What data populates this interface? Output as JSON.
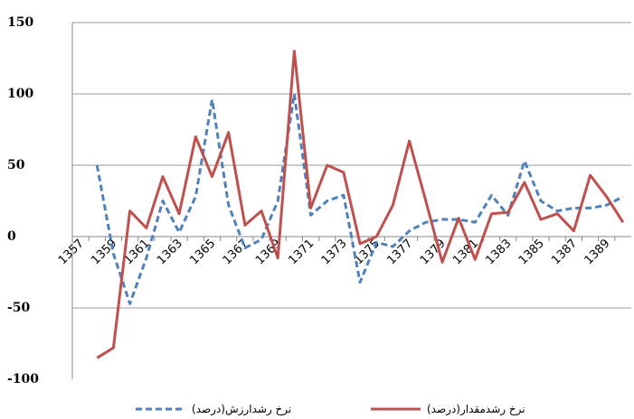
{
  "chart_data": {
    "type": "line",
    "categories": [
      "1357",
      null,
      "1359",
      null,
      "1361",
      null,
      "1363",
      null,
      "1365",
      null,
      "1367",
      null,
      "1369",
      null,
      "1371",
      null,
      "1373",
      null,
      "1375",
      null,
      "1377",
      null,
      "1379",
      null,
      "1381",
      null,
      "1383",
      null,
      "1385",
      null,
      "1387",
      null,
      "1389",
      null
    ],
    "series": [
      {
        "name": "نرخ رشدارزش(درصد)",
        "color": "#4f81bd",
        "dashed": true,
        "values": [
          null,
          50,
          -12,
          -47,
          -15,
          25,
          3,
          28,
          96,
          22,
          -8,
          -2,
          25,
          100,
          15,
          25,
          29,
          -32,
          -4,
          -7,
          4,
          10,
          12,
          12,
          10,
          29,
          15,
          53,
          25,
          18,
          20,
          20,
          22,
          28
        ]
      },
      {
        "name": "نرخ رشدمقدار(درصد)",
        "color": "#c0504d",
        "dashed": false,
        "values": [
          null,
          -85,
          -78,
          18,
          6,
          42,
          16,
          70,
          42,
          73,
          8,
          18,
          -15,
          130,
          20,
          50,
          45,
          -5,
          0,
          22,
          67,
          25,
          -18,
          13,
          -16,
          16,
          17,
          38,
          12,
          16,
          4,
          43,
          28,
          10
        ]
      }
    ],
    "ylim": [
      -100,
      150
    ],
    "yticks": [
      -100,
      -50,
      0,
      50,
      100,
      150
    ],
    "grid": true
  }
}
